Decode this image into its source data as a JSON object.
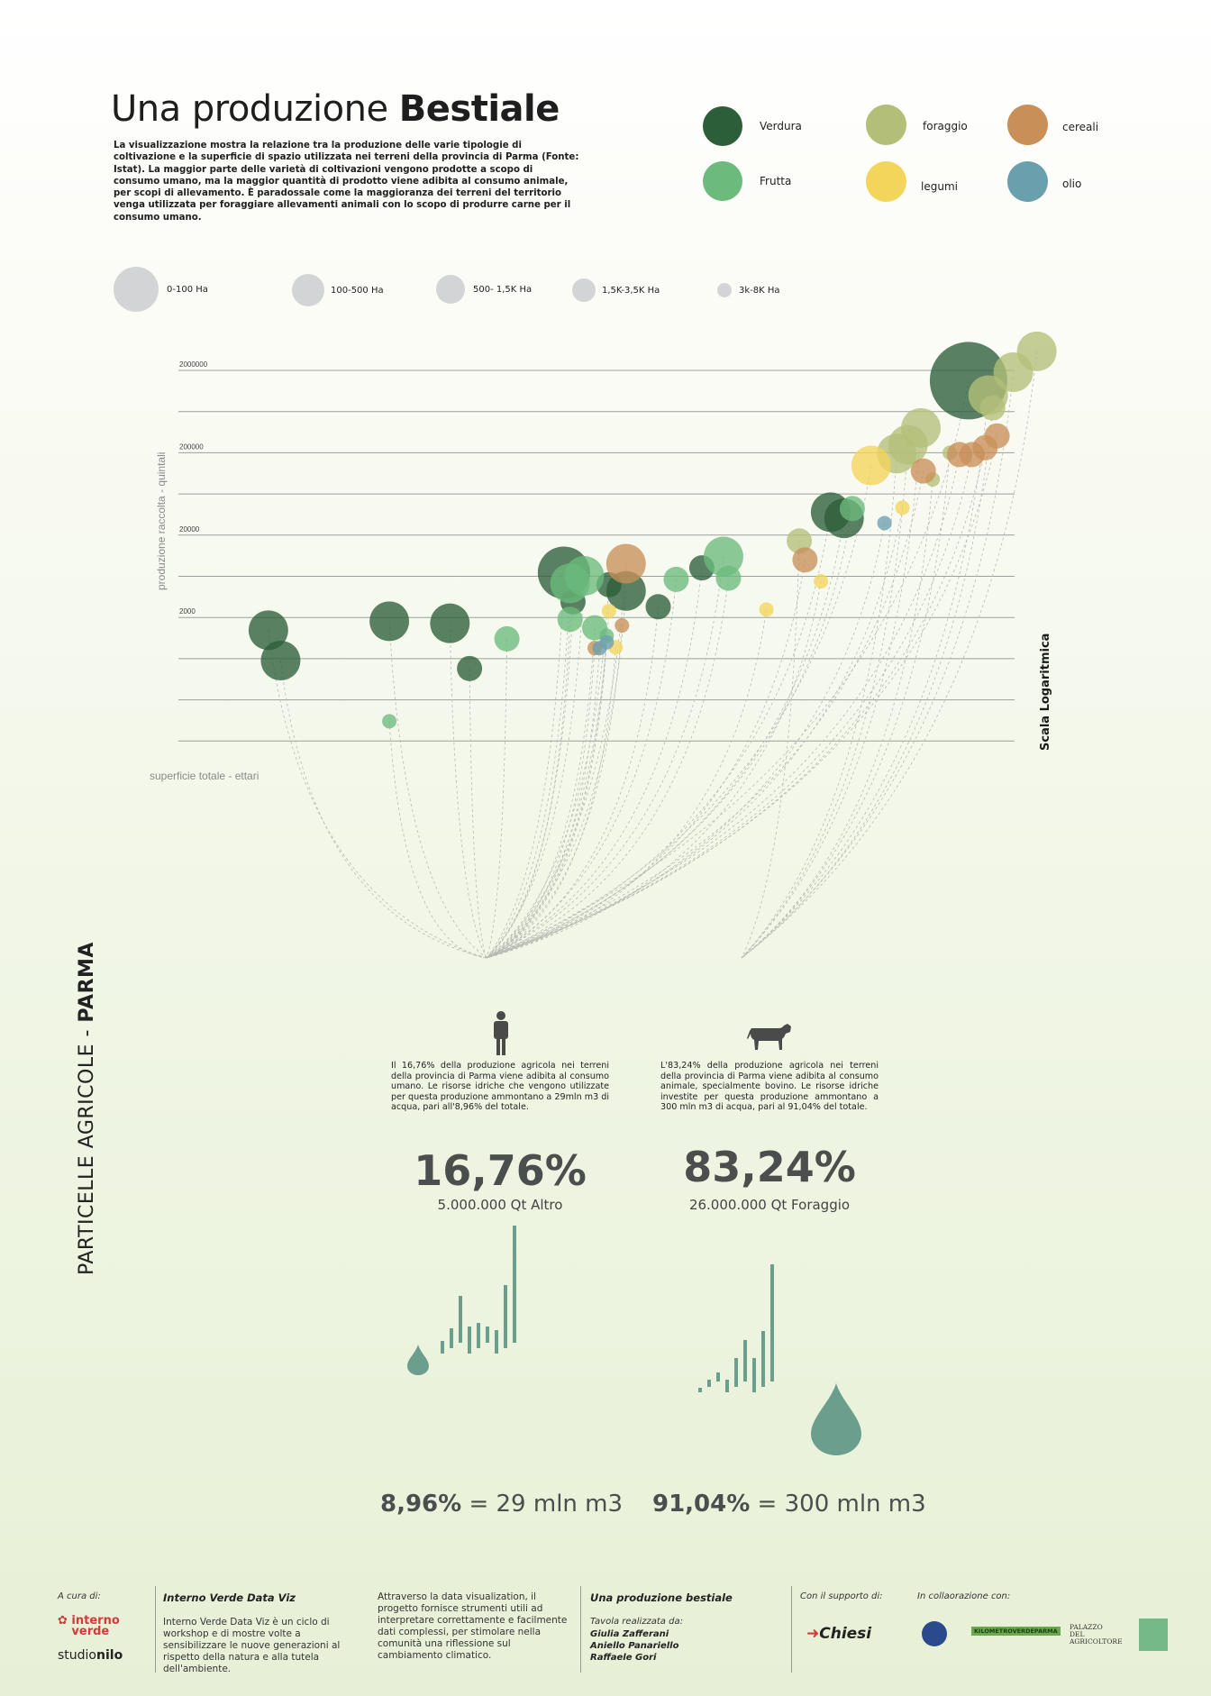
{
  "header": {
    "title_light": "Una produzione ",
    "title_bold": "Bestiale",
    "intro": "La visualizzazione mostra la relazione tra la produzione delle varie tipologie di coltivazione e la superficie di spazio utilizzata nei terreni della provincia di Parma (Fonte: Istat). La maggior parte delle varietà di coltivazioni vengono prodotte a scopo di consumo umano, ma la maggior quantità di prodotto viene adibita al consumo animale, per scopi di allevamento. È paradossale come la maggioranza dei terreni del territorio venga utilizzata per foraggiare allevamenti animali con lo scopo di produrre carne per il consumo umano."
  },
  "legend_categories": [
    {
      "label": "Verdura",
      "color": "#2d5e3a"
    },
    {
      "label": "Frutta",
      "color": "#6cba7c"
    },
    {
      "label": "foraggio",
      "color": "#b3bf78"
    },
    {
      "label": "legumi",
      "color": "#f3d55b"
    },
    {
      "label": "cereali",
      "color": "#c89058"
    },
    {
      "label": "olio",
      "color": "#6a9fae"
    }
  ],
  "legend_sizes": [
    "0-100 Ha",
    "100-500 Ha",
    "500- 1,5K Ha",
    "1,5K-3,5K Ha",
    "3k-8K Ha"
  ],
  "chart_data": {
    "type": "scatter",
    "title": "",
    "xlabel": "superficie totale - ettari",
    "ylabel": "produzione raccolta - quintali",
    "scale_note": "Scala Logaritmica",
    "y_scale": "log",
    "y_tick_labels": [
      "2000000",
      "200000",
      "20000",
      "2000"
    ],
    "grid": true,
    "series": [
      {
        "name": "Verdura",
        "color": "#2d5e3a",
        "points": [
          {
            "x": 55,
            "y": 1400,
            "size": 3
          },
          {
            "x": 60,
            "y": 600,
            "size": 3
          },
          {
            "x": 130,
            "y": 1800,
            "size": 3
          },
          {
            "x": 200,
            "y": 1700,
            "size": 3
          },
          {
            "x": 230,
            "y": 480,
            "size": 2
          },
          {
            "x": 450,
            "y": 7000,
            "size": 4
          },
          {
            "x": 480,
            "y": 3100,
            "size": 2
          },
          {
            "x": 620,
            "y": 5000,
            "size": 2
          },
          {
            "x": 700,
            "y": 4200,
            "size": 3
          },
          {
            "x": 880,
            "y": 2700,
            "size": 2
          },
          {
            "x": 1200,
            "y": 8000,
            "size": 2
          },
          {
            "x": 3000,
            "y": 38000,
            "size": 3
          },
          {
            "x": 3300,
            "y": 32000,
            "size": 3
          },
          {
            "x": 8000,
            "y": 1500000,
            "size": 5
          }
        ]
      },
      {
        "name": "Frutta",
        "color": "#6cba7c",
        "points": [
          {
            "x": 130,
            "y": 110,
            "size": 1
          },
          {
            "x": 300,
            "y": 1100,
            "size": 2
          },
          {
            "x": 470,
            "y": 5200,
            "size": 3
          },
          {
            "x": 520,
            "y": 6400,
            "size": 3
          },
          {
            "x": 470,
            "y": 1900,
            "size": 2
          },
          {
            "x": 560,
            "y": 1500,
            "size": 2
          },
          {
            "x": 610,
            "y": 1200,
            "size": 1
          },
          {
            "x": 1000,
            "y": 5800,
            "size": 2
          },
          {
            "x": 1400,
            "y": 11000,
            "size": 3
          },
          {
            "x": 1450,
            "y": 6000,
            "size": 2
          },
          {
            "x": 3500,
            "y": 42000,
            "size": 2
          }
        ]
      },
      {
        "name": "foraggio",
        "color": "#b3bf78",
        "points": [
          {
            "x": 2400,
            "y": 17000,
            "size": 2
          },
          {
            "x": 4800,
            "y": 195000,
            "size": 3
          },
          {
            "x": 5200,
            "y": 250000,
            "size": 3
          },
          {
            "x": 5700,
            "y": 400000,
            "size": 3
          },
          {
            "x": 6200,
            "y": 95000,
            "size": 1
          },
          {
            "x": 7000,
            "y": 200000,
            "size": 1
          },
          {
            "x": 9200,
            "y": 1000000,
            "size": 3
          },
          {
            "x": 9500,
            "y": 700000,
            "size": 2
          },
          {
            "x": 11000,
            "y": 1900000,
            "size": 3
          },
          {
            "x": 13000,
            "y": 3400000,
            "size": 3
          }
        ]
      },
      {
        "name": "legumi",
        "color": "#f3d55b",
        "points": [
          {
            "x": 620,
            "y": 2400,
            "size": 1
          },
          {
            "x": 650,
            "y": 870,
            "size": 1
          },
          {
            "x": 1900,
            "y": 2500,
            "size": 1
          },
          {
            "x": 2800,
            "y": 5500,
            "size": 1
          },
          {
            "x": 4000,
            "y": 140000,
            "size": 3
          },
          {
            "x": 5000,
            "y": 43000,
            "size": 1
          }
        ]
      },
      {
        "name": "cereali",
        "color": "#c89058",
        "points": [
          {
            "x": 560,
            "y": 850,
            "size": 1
          },
          {
            "x": 680,
            "y": 1600,
            "size": 1
          },
          {
            "x": 700,
            "y": 9000,
            "size": 3
          },
          {
            "x": 2500,
            "y": 10000,
            "size": 2
          },
          {
            "x": 5800,
            "y": 120000,
            "size": 2
          },
          {
            "x": 7500,
            "y": 190000,
            "size": 2
          },
          {
            "x": 8200,
            "y": 190000,
            "size": 2
          },
          {
            "x": 9000,
            "y": 230000,
            "size": 2
          },
          {
            "x": 9800,
            "y": 320000,
            "size": 2
          }
        ]
      },
      {
        "name": "olio",
        "color": "#6a9fae",
        "points": [
          {
            "x": 580,
            "y": 850,
            "size": 1
          },
          {
            "x": 610,
            "y": 1000,
            "size": 1
          },
          {
            "x": 4400,
            "y": 28000,
            "size": 1
          }
        ]
      }
    ]
  },
  "human": {
    "text": "Il 16,76% della produzione agricola nei terreni della provincia di Parma viene adibita al consumo umano. Le risorse idriche che vengono utilizzate per questa produzione ammontano a 29mln m3 di acqua, pari all'8,96% del totale.",
    "pct": "16,76%",
    "sub": "5.000.000 Qt Altro",
    "water_pct": "8,96%",
    "water_rest": " = 29 mln m3",
    "bars": [
      14,
      22,
      52,
      30,
      28,
      18,
      26,
      70,
      130
    ]
  },
  "animal": {
    "text": "L'83,24% della produzione agricola nei terreni della provincia di Parma viene adibita al consumo animale, specialmente bovino. Le risorse idriche investite per questa produzione ammontano a 300 mln m3 di acqua, pari al 91,04% del totale.",
    "pct": "83,24%",
    "sub": "26.000.000 Qt Foraggio",
    "water_pct": "91,04%",
    "water_rest": " = 300 mln m3",
    "bars": [
      5,
      8,
      10,
      14,
      32,
      46,
      38,
      62,
      130
    ]
  },
  "side_title_light": "PARTICELLE AGRICOLE - ",
  "side_title_bold": "PARMA",
  "footer": {
    "acura_label": "A cura di:",
    "logo_interno": "interno verde",
    "logo_studio_a": "studio",
    "logo_studio_b": "nilo",
    "col2_title": "Interno Verde Data Viz",
    "col2_text": "Interno Verde Data Viz è un ciclo di workshop e di mostre volte a sensibilizzare le nuove generazioni al rispetto della natura e alla tutela dell'ambiente.",
    "col3_text": "Attraverso la data visualization, il progetto fornisce strumenti utili ad interpretare correttamente e facilmente dati complessi, per stimolare nella comunità una riflessione sul cambiamento climatico.",
    "col4_title": "Una produzione bestiale",
    "col4_sub": "Tavola realizzata da:",
    "authors": [
      "Giulia Zafferani",
      "Aniello Panariello",
      "Raffaele Gori"
    ],
    "support_label": "Con il supporto di:",
    "chiesi": "Chiesi",
    "collab_label": "In collaorazione con:",
    "kilometro": "KILOMETROVERDEPARMA",
    "palazzo": "PALAZZO DEL AGRICOLTORE"
  }
}
